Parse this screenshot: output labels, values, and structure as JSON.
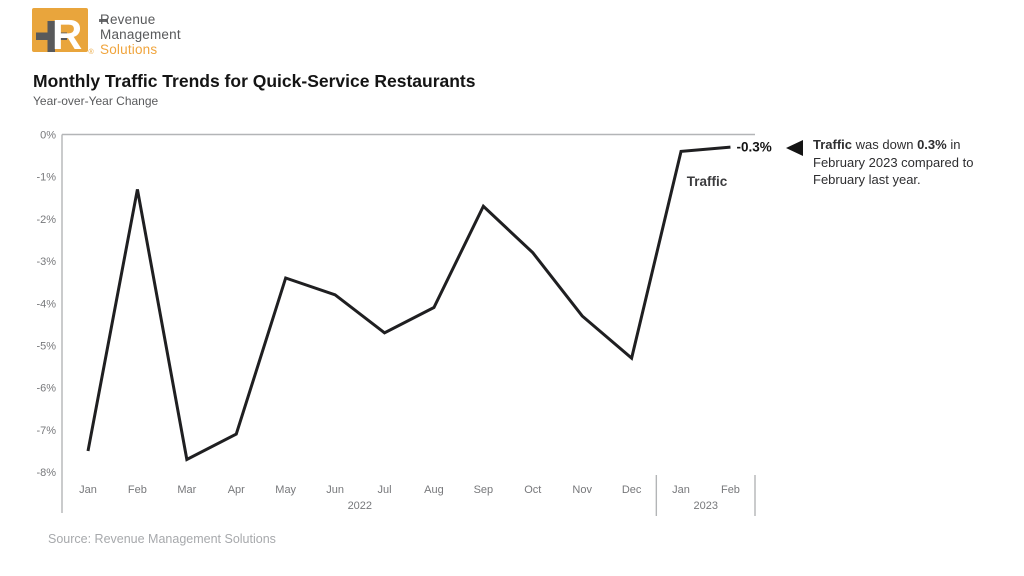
{
  "logo": {
    "mark_letter": "R",
    "registered": "®",
    "lines": [
      "Revenue",
      "Management",
      "Solutions"
    ],
    "colors": {
      "orange": "#E9A53C",
      "gray": "#58595B"
    }
  },
  "header": {
    "title": "Monthly Traffic Trends for Quick-Service Restaurants",
    "subtitle": "Year-over-Year Change"
  },
  "chart_data": {
    "type": "line",
    "title": "Monthly Traffic Trends for Quick-Service Restaurants",
    "subtitle": "Year-over-Year Change",
    "categories": [
      "Jan",
      "Feb",
      "Mar",
      "Apr",
      "May",
      "Jun",
      "Jul",
      "Aug",
      "Sep",
      "Oct",
      "Nov",
      "Dec",
      "Jan",
      "Feb"
    ],
    "year_groups": [
      {
        "label": "2022",
        "months": 12
      },
      {
        "label": "2023",
        "months": 2
      }
    ],
    "series": [
      {
        "name": "Traffic",
        "values": [
          -7.5,
          -1.3,
          -7.7,
          -7.1,
          -3.4,
          -3.8,
          -4.7,
          -4.1,
          -1.7,
          -2.8,
          -4.3,
          -5.3,
          -0.4,
          -0.3
        ]
      }
    ],
    "ylim": [
      -8,
      0
    ],
    "ytick_labels": [
      "0%",
      "-1%",
      "-2%",
      "-3%",
      "-4%",
      "-5%",
      "-6%",
      "-7%",
      "-8%"
    ],
    "end_label": "-0.3%",
    "grid": false,
    "legend_position": "end-of-line",
    "line_color": "#1F1F21",
    "axis_color": "#B3B5B7",
    "tick_color": "#77787B"
  },
  "annotation": {
    "lines": [
      [
        {
          "t": "Traffic",
          "b": true
        },
        {
          "t": " was down ",
          "b": false
        },
        {
          "t": "0.3%",
          "b": true
        },
        {
          "t": " in",
          "b": false
        }
      ],
      [
        {
          "t": "February 2023 compared to",
          "b": false
        }
      ],
      [
        {
          "t": "February last year.",
          "b": false
        }
      ]
    ]
  },
  "source": {
    "text": "Source: Revenue Management Solutions"
  }
}
